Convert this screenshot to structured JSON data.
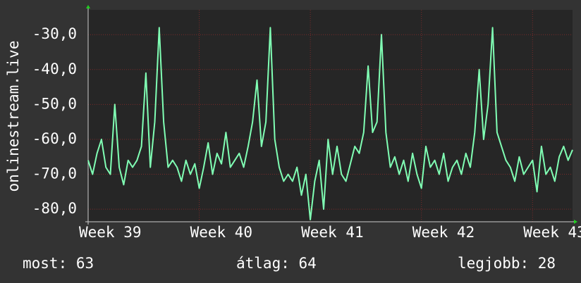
{
  "chart_data": {
    "type": "line",
    "y_label": "onlinestream.live",
    "x": [
      39.0,
      39.04,
      39.08,
      39.12,
      39.16,
      39.2,
      39.24,
      39.28,
      39.32,
      39.36,
      39.4,
      39.44,
      39.48,
      39.52,
      39.56,
      39.6,
      39.64,
      39.68,
      39.72,
      39.76,
      39.8,
      39.84,
      39.88,
      39.92,
      39.96,
      40.0,
      40.04,
      40.08,
      40.12,
      40.16,
      40.2,
      40.24,
      40.28,
      40.32,
      40.36,
      40.4,
      40.44,
      40.48,
      40.52,
      40.56,
      40.6,
      40.64,
      40.68,
      40.72,
      40.76,
      40.8,
      40.84,
      40.88,
      40.92,
      40.96,
      41.0,
      41.04,
      41.08,
      41.12,
      41.16,
      41.2,
      41.24,
      41.28,
      41.32,
      41.36,
      41.4,
      41.44,
      41.48,
      41.52,
      41.56,
      41.6,
      41.64,
      41.68,
      41.72,
      41.76,
      41.8,
      41.84,
      41.88,
      41.92,
      41.96,
      42.0,
      42.04,
      42.08,
      42.12,
      42.16,
      42.2,
      42.24,
      42.28,
      42.32,
      42.36,
      42.4,
      42.44,
      42.48,
      42.52,
      42.56,
      42.6,
      42.64,
      42.68,
      42.72,
      42.76,
      42.8,
      42.84,
      42.88,
      42.92,
      42.96,
      43.0,
      43.04,
      43.08,
      43.12,
      43.16,
      43.2,
      43.24,
      43.28,
      43.32,
      43.36
    ],
    "series": [
      {
        "color": "#80ffb4",
        "values": [
          -66,
          -70,
          -64,
          -60,
          -68,
          -70,
          -50,
          -68,
          -73,
          -66,
          -68,
          -66,
          -62,
          -41,
          -68,
          -55,
          -28,
          -55,
          -68,
          -66,
          -68,
          -72,
          -66,
          -70,
          -67,
          -74,
          -68,
          -61,
          -70,
          -64,
          -67,
          -58,
          -68,
          -66,
          -64,
          -68,
          -62,
          -55,
          -43,
          -62,
          -55,
          -28,
          -60,
          -68,
          -72,
          -70,
          -72,
          -68,
          -76,
          -70,
          -83,
          -72,
          -66,
          -80,
          -60,
          -70,
          -62,
          -70,
          -72,
          -67,
          -62,
          -64,
          -58,
          -39,
          -58,
          -55,
          -30,
          -58,
          -68,
          -65,
          -70,
          -66,
          -72,
          -64,
          -70,
          -74,
          -62,
          -68,
          -66,
          -70,
          -64,
          -72,
          -68,
          -66,
          -70,
          -64,
          -68,
          -58,
          -40,
          -60,
          -50,
          -28,
          -58,
          -62,
          -66,
          -68,
          -72,
          -65,
          -70,
          -68,
          -66,
          -75,
          -62,
          -70,
          -68,
          -72,
          -65,
          -62,
          -66,
          -63
        ]
      }
    ],
    "xlim": [
      39,
      43.36
    ],
    "xticks": [
      {
        "value": 39,
        "label": "Week 39"
      },
      {
        "value": 40,
        "label": "Week 40"
      },
      {
        "value": 41,
        "label": "Week 41"
      },
      {
        "value": 42,
        "label": "Week 42"
      },
      {
        "value": 43,
        "label": "Week 43"
      }
    ],
    "ylim": [
      -83.6,
      -22.9
    ],
    "yticks": [
      {
        "value": -80,
        "label": "-80,0"
      },
      {
        "value": -70,
        "label": "-70,0"
      },
      {
        "value": -60,
        "label": "-60,0"
      },
      {
        "value": -50,
        "label": "-50,0"
      },
      {
        "value": -40,
        "label": "-40,0"
      },
      {
        "value": -30,
        "label": "-30,0"
      }
    ],
    "grid": true,
    "stats": [
      {
        "label": "most:",
        "value": 63
      },
      {
        "label": "átlag:",
        "value": 64
      },
      {
        "label": "legjobb:",
        "value": 28
      }
    ]
  }
}
